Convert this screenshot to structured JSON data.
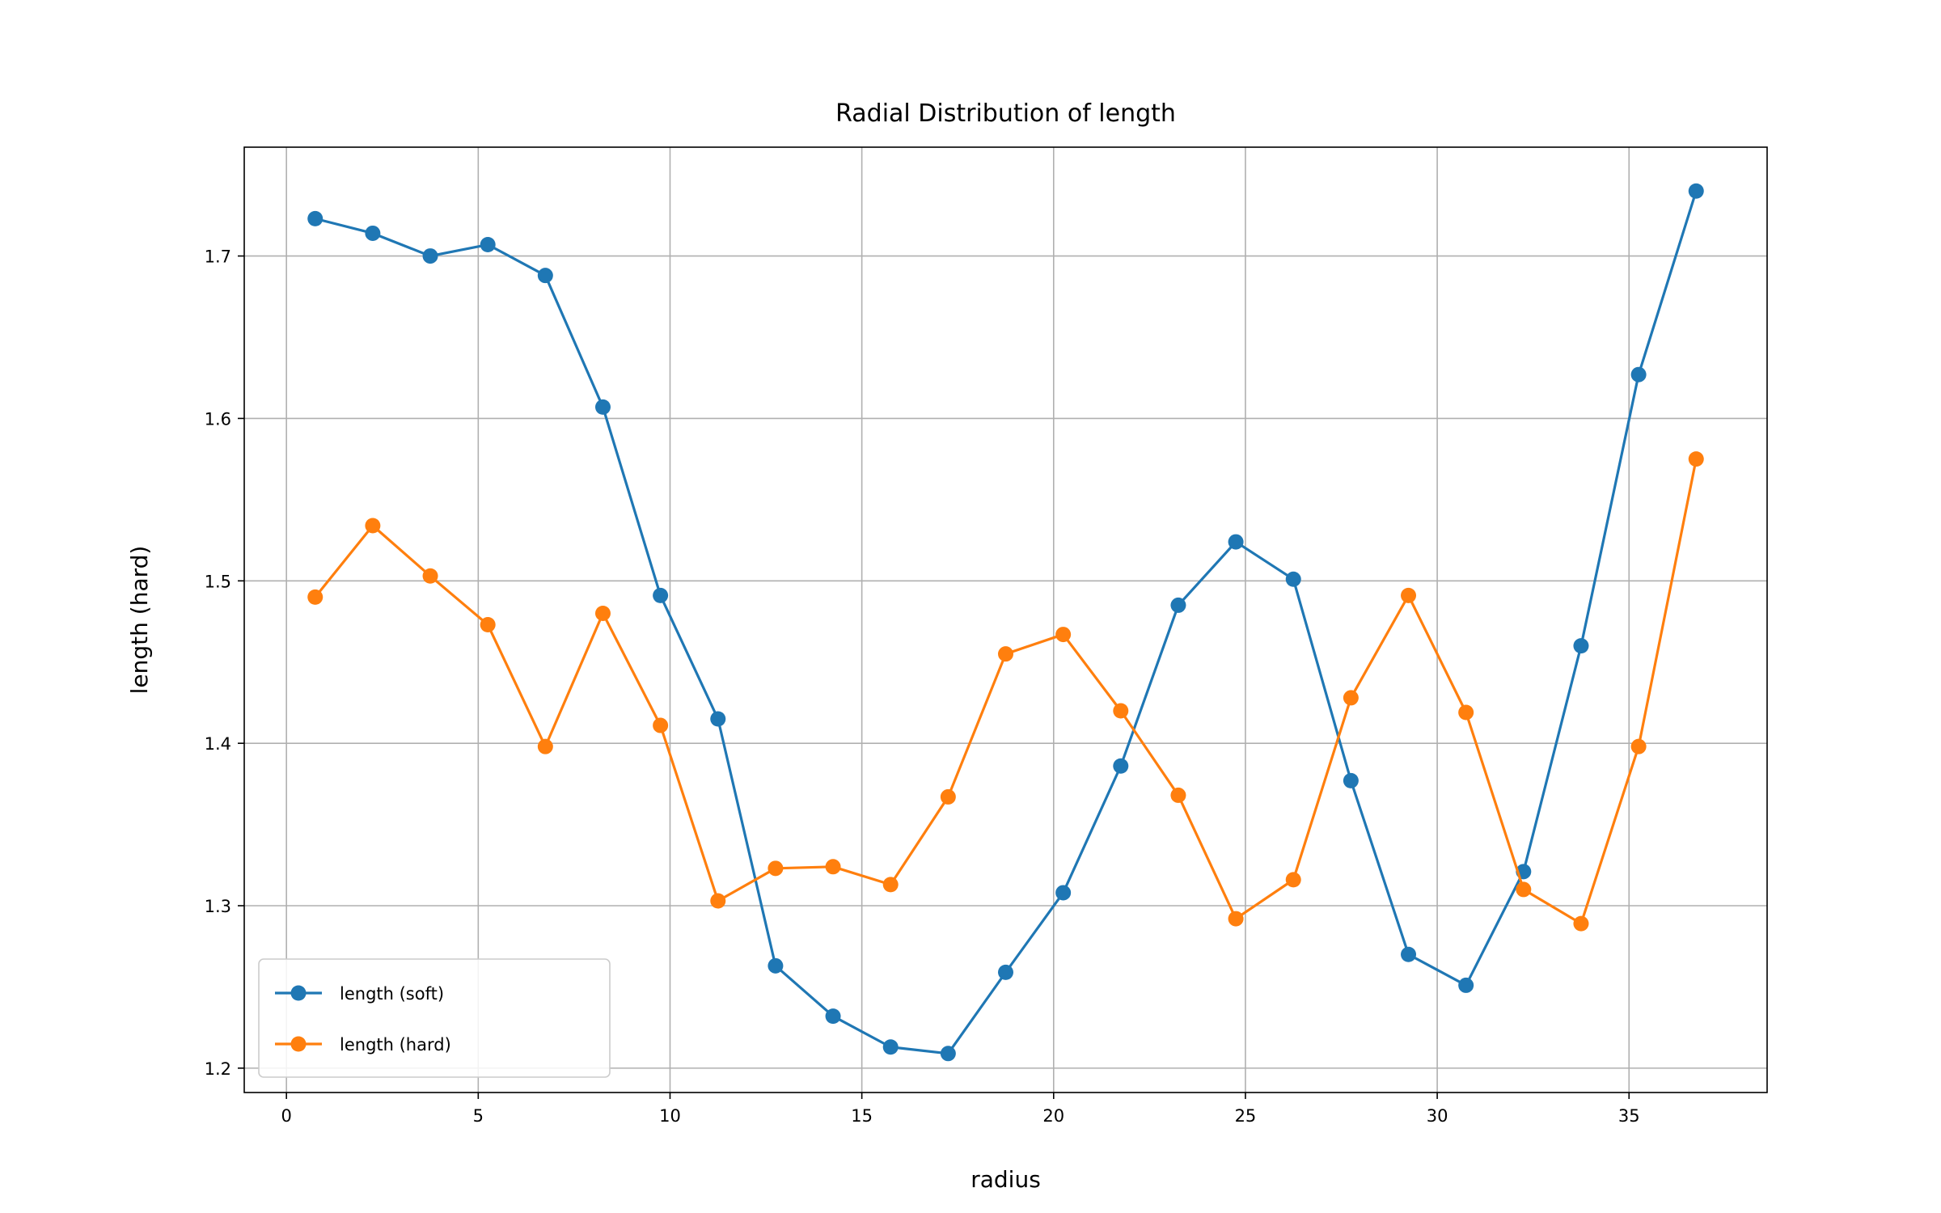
{
  "chart_data": {
    "type": "line",
    "title": "Radial Distribution of length",
    "xlabel": "radius",
    "ylabel": "length (hard)",
    "xlim": [
      -1.1,
      38.6
    ],
    "ylim": [
      1.185,
      1.767
    ],
    "xticks": [
      0,
      5,
      10,
      15,
      20,
      25,
      30,
      35
    ],
    "yticks": [
      1.2,
      1.3,
      1.4,
      1.5,
      1.6,
      1.7
    ],
    "grid": true,
    "legend_position": "lower-left",
    "x": [
      0.75,
      2.25,
      3.75,
      5.25,
      6.75,
      8.25,
      9.75,
      11.25,
      12.75,
      14.25,
      15.75,
      17.25,
      18.75,
      20.25,
      21.75,
      23.25,
      24.75,
      26.25,
      27.75,
      29.25,
      30.75,
      32.25,
      33.75,
      35.25,
      36.75
    ],
    "series": [
      {
        "name": "length (soft)",
        "color": "#1f77b4",
        "marker": "circle",
        "values": [
          1.723,
          1.714,
          1.7,
          1.707,
          1.688,
          1.607,
          1.491,
          1.415,
          1.263,
          1.232,
          1.213,
          1.209,
          1.259,
          1.308,
          1.386,
          1.485,
          1.524,
          1.501,
          1.377,
          1.27,
          1.251,
          1.321,
          1.46,
          1.627,
          1.74
        ]
      },
      {
        "name": "length (hard)",
        "color": "#ff7f0e",
        "marker": "circle",
        "values": [
          1.49,
          1.534,
          1.503,
          1.473,
          1.398,
          1.48,
          1.411,
          1.303,
          1.323,
          1.324,
          1.313,
          1.367,
          1.455,
          1.467,
          1.42,
          1.368,
          1.292,
          1.316,
          1.428,
          1.491,
          1.419,
          1.31,
          1.289,
          1.398,
          1.575
        ]
      }
    ]
  }
}
